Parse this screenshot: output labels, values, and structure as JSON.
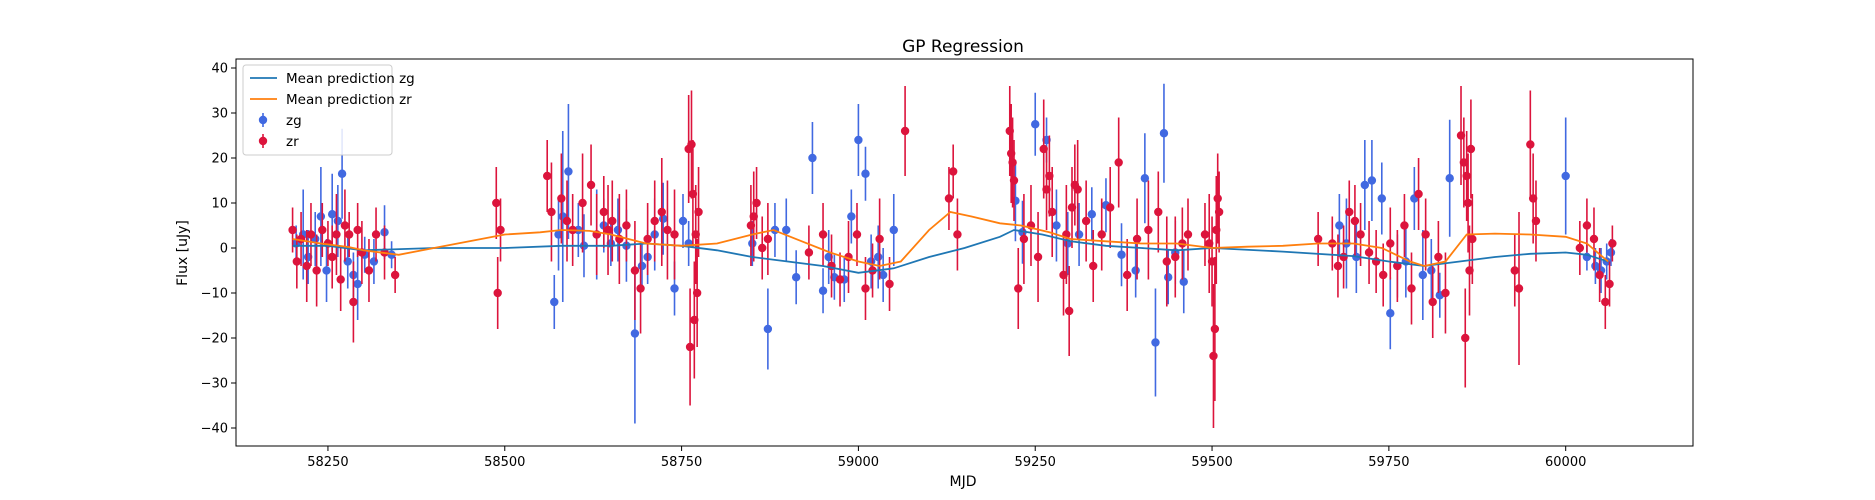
{
  "chart_data": {
    "type": "scatter",
    "title": "GP Regression",
    "xlabel": "MJD",
    "ylabel": "Flux [uJy]",
    "xlim": [
      58120,
      60180
    ],
    "ylim": [
      -44,
      42
    ],
    "xticks": [
      58250,
      58500,
      58750,
      59000,
      59250,
      59500,
      59750,
      60000
    ],
    "yticks": [
      -40,
      -30,
      -20,
      -10,
      0,
      10,
      20,
      30,
      40
    ],
    "grid": false,
    "legend_position": "top-left",
    "colors": {
      "zg_line": "#1f77b4",
      "zr_line": "#ff7f0e",
      "zg_points": "#4169e1",
      "zr_points": "#dc143c"
    },
    "lines": [
      {
        "name": "Mean prediction zg",
        "color": "#1f77b4",
        "x": [
          58200,
          58250,
          58300,
          58400,
          58500,
          58580,
          58650,
          58700,
          58750,
          58800,
          58850,
          58900,
          58950,
          59000,
          59050,
          59100,
          59150,
          59200,
          59220,
          59260,
          59300,
          59350,
          59400,
          59450,
          59500,
          59600,
          59700,
          59750,
          59800,
          59850,
          59900,
          59950,
          60000,
          60030,
          60050,
          60060
        ],
        "y": [
          0.5,
          0.5,
          -0.5,
          0,
          0,
          0.5,
          0.5,
          1,
          0.5,
          -0.5,
          -2,
          -3,
          -4,
          -5.5,
          -4.5,
          -2,
          0,
          2.5,
          4,
          3,
          1.5,
          0.5,
          0,
          -0.5,
          0,
          -0.8,
          -1.8,
          -3,
          -4,
          -3,
          -2,
          -1.3,
          -1,
          -1.5,
          -2.5,
          -3
        ]
      },
      {
        "name": "Mean prediction zr",
        "color": "#ff7f0e",
        "x": [
          58200,
          58240,
          58280,
          58300,
          58350,
          58400,
          58450,
          58500,
          58550,
          58580,
          58620,
          58650,
          58700,
          58750,
          58800,
          58850,
          58880,
          58920,
          58960,
          59000,
          59030,
          59060,
          59100,
          59130,
          59160,
          59200,
          59230,
          59270,
          59300,
          59350,
          59400,
          59450,
          59500,
          59550,
          59600,
          59650,
          59700,
          59740,
          59780,
          59800,
          59830,
          59860,
          59900,
          59950,
          60000,
          60030,
          60060
        ],
        "y": [
          2,
          1,
          0.2,
          -0.5,
          -1.5,
          0,
          1.5,
          3,
          3.5,
          4,
          3.8,
          3,
          1,
          0.5,
          1,
          3,
          4,
          1.5,
          -1,
          -3,
          -4,
          -3,
          4,
          8,
          7,
          5.5,
          5,
          3.5,
          2,
          1.5,
          1,
          1,
          0,
          0.3,
          0.5,
          1,
          1,
          0,
          -3,
          -4,
          -3,
          3,
          3.2,
          3,
          2.5,
          1,
          -3
        ]
      }
    ],
    "series": [
      {
        "name": "zg",
        "color": "#4169e1",
        "x": [
          58205,
          58215,
          58222,
          58232,
          58240,
          58248,
          58256,
          58264,
          58270,
          58278,
          58286,
          58292,
          58302,
          58315,
          58330,
          58340,
          58570,
          58576,
          58582,
          58590,
          58604,
          58612,
          58630,
          58640,
          58650,
          58660,
          58672,
          58684,
          58694,
          58702,
          58712,
          58724,
          58740,
          58752,
          58760,
          58850,
          58872,
          58882,
          58898,
          58912,
          58935,
          58950,
          58958,
          58966,
          58980,
          58990,
          59000,
          59010,
          59018,
          59028,
          59035,
          59050,
          59222,
          59232,
          59250,
          59266,
          59280,
          59296,
          59312,
          59330,
          59350,
          59372,
          59392,
          59405,
          59420,
          59432,
          59438,
          59448,
          59460,
          59680,
          59690,
          59704,
          59716,
          59726,
          59740,
          59752,
          59762,
          59774,
          59786,
          59798,
          59810,
          59822,
          59836,
          60000,
          60030,
          60042,
          60050,
          60058,
          60064
        ],
        "y": [
          1,
          3,
          -2,
          2,
          7,
          -5,
          7.5,
          6,
          16.5,
          -3,
          -6,
          -8,
          -1.5,
          -3,
          3.5,
          -1.5,
          -12,
          3,
          7,
          17,
          4,
          0.5,
          3,
          5,
          1,
          4,
          0.5,
          -19,
          -4,
          -2,
          3,
          6.5,
          -9,
          6,
          1,
          1,
          -18,
          4,
          4,
          -6.5,
          20,
          -9.5,
          -2,
          -6.5,
          -7,
          7,
          24,
          16.5,
          -3,
          -2,
          -6,
          4,
          10.5,
          3.5,
          27.5,
          24,
          5,
          1,
          3,
          7.5,
          9.5,
          -1.5,
          -5,
          15.5,
          -21,
          25.5,
          -6.5,
          -1,
          -7.5,
          5,
          1,
          -2,
          14,
          15,
          11,
          -14.5,
          -4,
          -3,
          11,
          -6,
          -5,
          -10.5,
          15.5,
          16,
          -2,
          -4,
          -5,
          -3,
          -1
        ],
        "err": [
          4,
          10,
          6,
          6,
          11,
          7,
          9,
          8,
          10,
          6,
          5,
          8,
          4,
          5,
          6,
          3,
          6,
          8,
          19,
          15,
          6,
          7,
          10,
          6,
          5,
          7,
          8,
          20,
          5,
          6,
          8,
          8,
          6,
          6,
          5,
          5,
          9,
          6,
          7,
          6,
          8,
          5,
          6,
          5,
          5,
          6,
          8,
          6,
          6,
          7,
          6,
          8,
          9,
          7,
          7,
          5,
          8,
          7,
          7,
          6,
          6,
          7,
          6,
          10,
          12,
          11,
          6,
          7,
          7,
          7,
          10,
          8,
          10,
          9,
          8,
          8,
          7,
          8,
          7,
          10,
          7,
          5,
          13,
          13,
          3,
          4,
          5,
          4,
          3
        ]
      },
      {
        "name": "zr",
        "color": "#dc143c",
        "x": [
          58200,
          58206,
          58212,
          58220,
          58226,
          58234,
          58242,
          58250,
          58256,
          58262,
          58268,
          58274,
          58280,
          58286,
          58292,
          58298,
          58308,
          58318,
          58330,
          58345,
          58488,
          58490,
          58494,
          58560,
          58566,
          58580,
          58588,
          58596,
          58610,
          58622,
          58630,
          58640,
          58646,
          58652,
          58662,
          58672,
          58684,
          58692,
          58702,
          58712,
          58722,
          58730,
          58740,
          58760,
          58762,
          58764,
          58766,
          58768,
          58770,
          58772,
          58774,
          58848,
          58852,
          58856,
          58864,
          58872,
          58930,
          58950,
          58962,
          58974,
          58986,
          58998,
          59010,
          59020,
          59030,
          59044,
          59066,
          59128,
          59134,
          59140,
          59214,
          59216,
          59218,
          59220,
          59226,
          59234,
          59244,
          59254,
          59262,
          59266,
          59270,
          59274,
          59290,
          59294,
          59298,
          59302,
          59306,
          59310,
          59322,
          59332,
          59344,
          59356,
          59368,
          59380,
          59394,
          59410,
          59424,
          59436,
          59448,
          59458,
          59466,
          59490,
          59496,
          59500,
          59502,
          59504,
          59506,
          59508,
          59510,
          59650,
          59670,
          59678,
          59686,
          59694,
          59702,
          59710,
          59722,
          59732,
          59742,
          59752,
          59762,
          59772,
          59782,
          59792,
          59802,
          59812,
          59820,
          59830,
          59852,
          59856,
          59858,
          59860,
          59862,
          59864,
          59866,
          59868,
          59928,
          59934,
          59950,
          59954,
          59958,
          60020,
          60030,
          60040,
          60048,
          60056,
          60062,
          60066
        ],
        "y": [
          4,
          -3,
          2,
          -4,
          3,
          -5,
          4,
          1,
          -2,
          3,
          -7,
          5,
          3,
          -12,
          4,
          -1,
          -5,
          3,
          -1,
          -6,
          10,
          -10,
          4,
          16,
          8,
          11,
          6,
          4,
          10,
          14,
          3,
          8,
          4,
          6,
          2,
          5,
          -5,
          -9,
          2,
          6,
          8,
          4,
          3,
          22,
          -22,
          23,
          12,
          -16,
          3,
          -10,
          8,
          5,
          7,
          10,
          0,
          2,
          -1,
          3,
          -4,
          -7,
          -2,
          3,
          -9,
          -5,
          2,
          -8,
          26,
          11,
          17,
          3,
          26,
          21,
          19,
          15,
          -9,
          2,
          5,
          -2,
          22,
          13,
          16,
          8,
          -6,
          3,
          -14,
          9,
          14,
          13,
          6,
          -4,
          3,
          9,
          19,
          -6,
          2,
          4,
          8,
          -3,
          -2,
          1,
          3,
          3,
          1,
          -3,
          -24,
          -18,
          4,
          11,
          8,
          2,
          1,
          -4,
          -2,
          8,
          6,
          3,
          -1,
          -3,
          -6,
          1,
          -4,
          5,
          -9,
          12,
          3,
          -12,
          -2,
          -10,
          25,
          19,
          -20,
          16,
          10,
          -5,
          22,
          2,
          -5,
          -9,
          23,
          11,
          6,
          0,
          5,
          2,
          -6,
          -12,
          -8,
          1
        ],
        "err": [
          5,
          6,
          6,
          8,
          7,
          8,
          6,
          5,
          7,
          9,
          7,
          8,
          5,
          9,
          6,
          7,
          7,
          6,
          6,
          4,
          8,
          8,
          7,
          8,
          11,
          10,
          9,
          8,
          11,
          9,
          9,
          8,
          10,
          9,
          10,
          8,
          11,
          10,
          8,
          9,
          12,
          11,
          10,
          12,
          13,
          12,
          12,
          13,
          11,
          12,
          10,
          9,
          10,
          8,
          7,
          8,
          6,
          7,
          7,
          6,
          8,
          7,
          7,
          6,
          9,
          6,
          10,
          7,
          6,
          8,
          10,
          11,
          10,
          9,
          9,
          10,
          9,
          10,
          11,
          9,
          9,
          10,
          9,
          11,
          10,
          9,
          9,
          11,
          9,
          8,
          8,
          9,
          10,
          8,
          9,
          11,
          9,
          10,
          9,
          8,
          8,
          7,
          11,
          10,
          16,
          16,
          12,
          10,
          9,
          6,
          6,
          7,
          7,
          7,
          8,
          7,
          7,
          7,
          7,
          8,
          8,
          7,
          8,
          8,
          8,
          8,
          8,
          9,
          11,
          10,
          11,
          10,
          11,
          10,
          11,
          10,
          8,
          17,
          12,
          10,
          9,
          6,
          6,
          7,
          6,
          6,
          5,
          4
        ]
      }
    ],
    "legend": [
      {
        "label": "Mean prediction zg",
        "kind": "line",
        "color": "#1f77b4"
      },
      {
        "label": "Mean prediction zr",
        "kind": "line",
        "color": "#ff7f0e"
      },
      {
        "label": "zg",
        "kind": "errorbar",
        "color": "#4169e1"
      },
      {
        "label": "zr",
        "kind": "errorbar",
        "color": "#dc143c"
      }
    ]
  }
}
